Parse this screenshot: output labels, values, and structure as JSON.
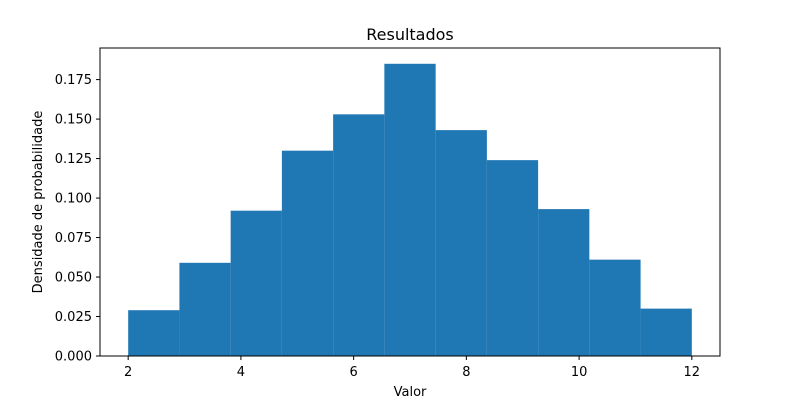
{
  "chart_data": {
    "type": "bar",
    "subtype": "histogram",
    "title": "Resultados",
    "xlabel": "Valor",
    "ylabel": "Densidade de probabilidade",
    "xlim": [
      1.5,
      12.5
    ],
    "ylim": [
      0,
      0.195
    ],
    "x_ticks": [
      2,
      4,
      6,
      8,
      10,
      12
    ],
    "x_tick_labels": [
      "2",
      "4",
      "6",
      "8",
      "10",
      "12"
    ],
    "y_ticks": [
      0,
      0.025,
      0.05,
      0.075,
      0.1,
      0.125,
      0.15,
      0.175
    ],
    "y_tick_labels": [
      "0.000",
      "0.025",
      "0.050",
      "0.075",
      "0.100",
      "0.125",
      "0.150",
      "0.175"
    ],
    "bin_edges": [
      2.0,
      2.909,
      3.818,
      4.727,
      5.636,
      6.545,
      7.455,
      8.364,
      9.273,
      10.182,
      11.091,
      12.0
    ],
    "values": [
      0.029,
      0.059,
      0.092,
      0.13,
      0.153,
      0.185,
      0.143,
      0.124,
      0.093,
      0.061,
      0.03
    ],
    "bar_color": "#1f77b4",
    "grid": false
  }
}
